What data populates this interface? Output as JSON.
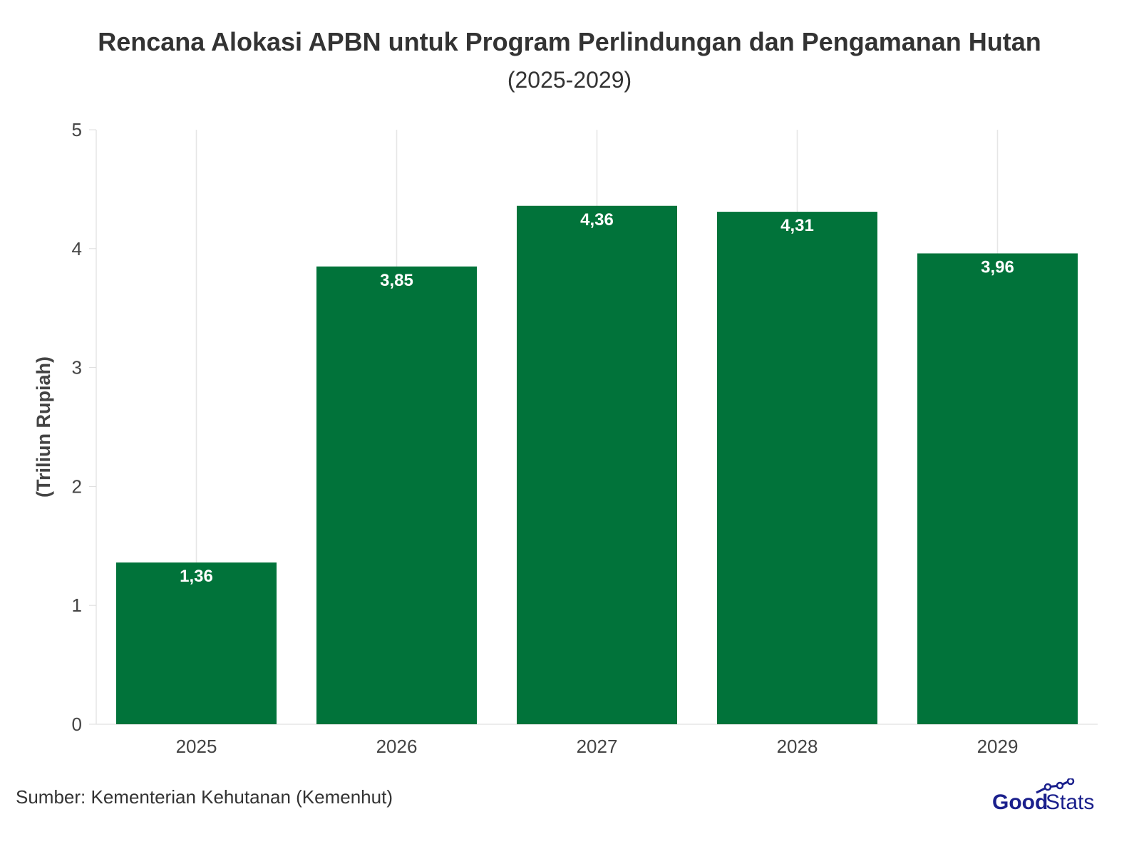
{
  "chart_data": {
    "type": "bar",
    "title": "Rencana Alokasi APBN untuk Program Perlindungan dan Pengamanan Hutan",
    "subtitle": "(2025-2029)",
    "categories": [
      "2025",
      "2026",
      "2027",
      "2028",
      "2029"
    ],
    "values": [
      1.36,
      3.85,
      4.36,
      4.31,
      3.96
    ],
    "data_labels": [
      "1,36",
      "3,85",
      "4,36",
      "4,31",
      "3,96"
    ],
    "xlabel": "",
    "ylabel": "(Triliun Rupiah)",
    "ylim": [
      0,
      5
    ],
    "yticks": [
      "0",
      "1",
      "2",
      "3",
      "4",
      "5"
    ],
    "grid": "vertical",
    "bar_color": "#01733a"
  },
  "source": "Sumber: Kementerian Kehutanan (Kemenhut)",
  "logo": {
    "text_good": "Good",
    "text_stats": "Stats",
    "color": "#1a1f8c"
  }
}
